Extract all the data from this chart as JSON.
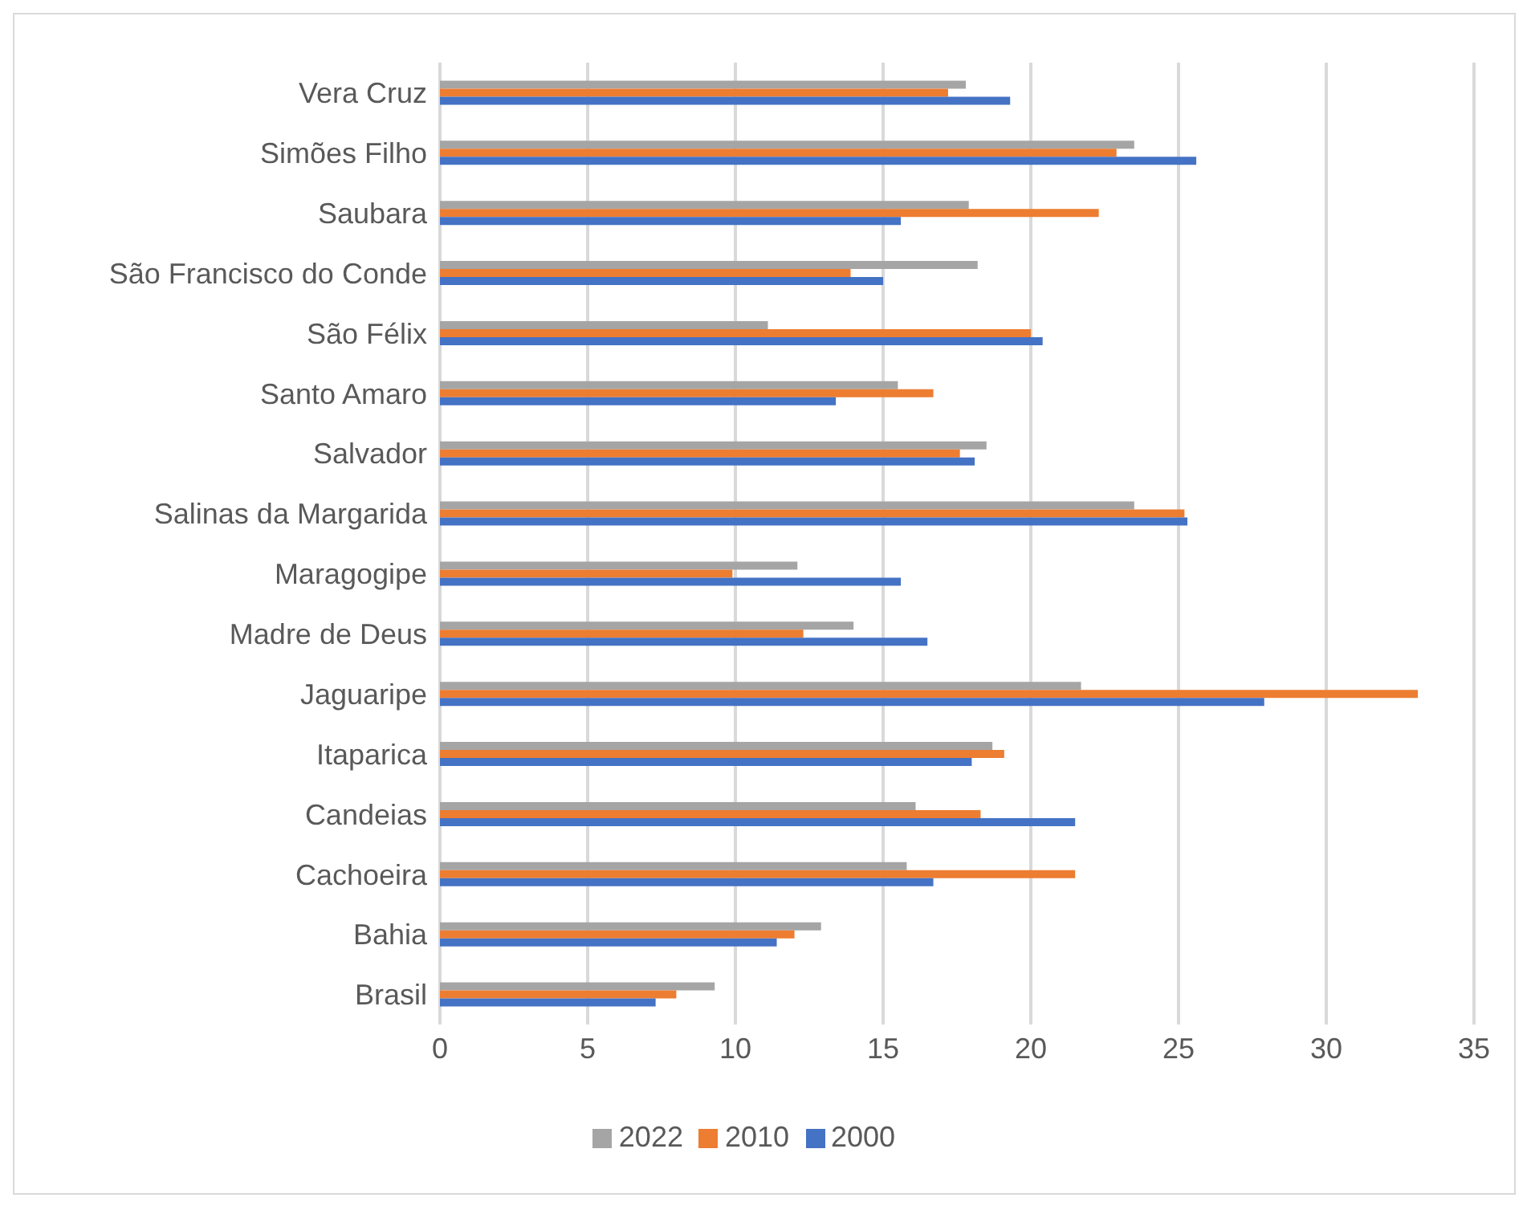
{
  "chart_data": {
    "type": "bar",
    "orientation": "horizontal",
    "categories": [
      "Vera Cruz",
      "Simões Filho",
      "Saubara",
      "São Francisco do Conde",
      "São Félix",
      "Santo Amaro",
      "Salvador",
      "Salinas da Margarida",
      "Maragogipe",
      "Madre de Deus",
      "Jaguaripe",
      "Itaparica",
      "Candeias",
      "Cachoeira",
      "Bahia",
      "Brasil"
    ],
    "series": [
      {
        "name": "2022",
        "color": "#a5a5a5",
        "values": [
          17.8,
          23.5,
          17.9,
          18.2,
          11.1,
          15.5,
          18.5,
          23.5,
          12.1,
          14.0,
          21.7,
          18.7,
          16.1,
          15.8,
          12.9,
          9.3
        ]
      },
      {
        "name": "2010",
        "color": "#ed7d31",
        "values": [
          17.2,
          22.9,
          22.3,
          13.9,
          20.0,
          16.7,
          17.6,
          25.2,
          9.9,
          12.3,
          33.1,
          19.1,
          18.3,
          21.5,
          12.0,
          8.0
        ]
      },
      {
        "name": "2000",
        "color": "#4472c4",
        "values": [
          19.3,
          25.6,
          15.6,
          15.0,
          20.4,
          13.4,
          18.1,
          25.3,
          15.6,
          16.5,
          27.9,
          18.0,
          21.5,
          16.7,
          11.4,
          7.3
        ]
      }
    ],
    "xlim": [
      0,
      35
    ],
    "xticks": [
      0,
      5,
      10,
      15,
      20,
      25,
      30,
      35
    ],
    "grid": "x",
    "legend": "bottom"
  }
}
